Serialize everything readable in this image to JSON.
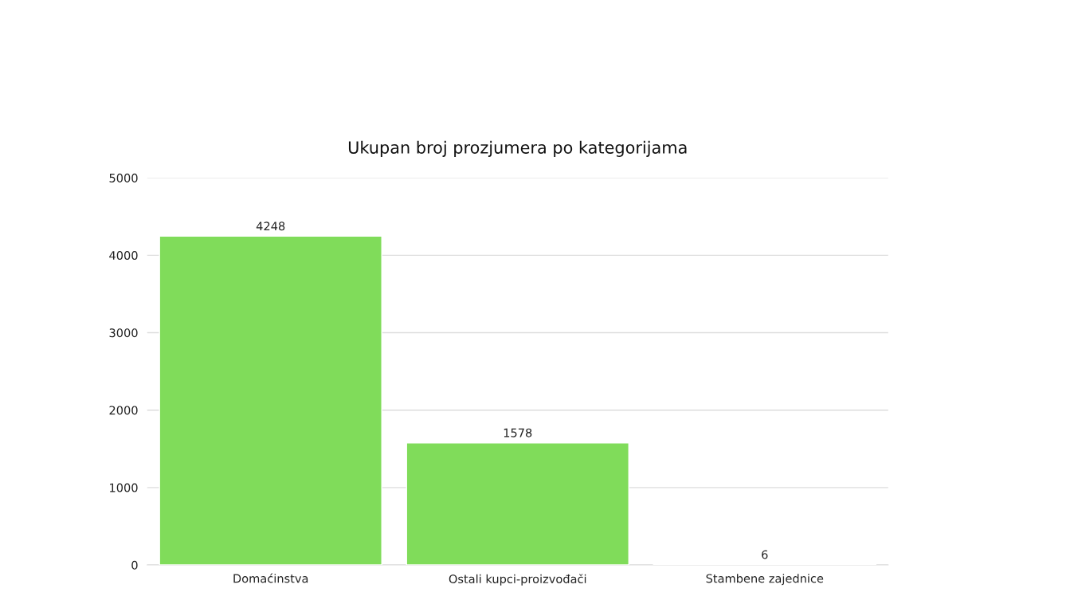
{
  "chart_data": {
    "type": "bar",
    "title": "Ukupan broj prozjumera po kategorijama",
    "categories": [
      "Domaćinstva",
      "Ostali kupci-proizvođači",
      "Stambene zajednice"
    ],
    "values": [
      4248,
      1578,
      6
    ],
    "color": "#80dc5a",
    "ylim": [
      0,
      5000
    ],
    "yticks": [
      0,
      1000,
      2000,
      3000,
      4000,
      5000
    ],
    "grid": "y",
    "data_labels": true
  }
}
